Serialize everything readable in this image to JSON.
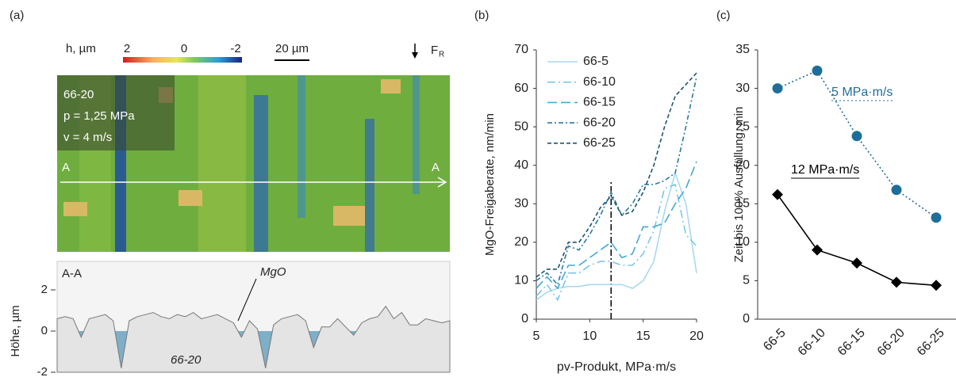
{
  "chart_data": [
    {
      "type": "area",
      "panel_label": "(a)",
      "colorbar_label": "h, µm",
      "colorbar_ticks": [
        "2",
        "0",
        "-2"
      ],
      "scale_bar": "20 µm",
      "force_label": "F",
      "force_subscript": "R",
      "image_texts": [
        "66-20",
        "p = 1,25 MPa",
        "v = 4 m/s"
      ],
      "section_marks": [
        "A",
        "A"
      ],
      "title": "A-A",
      "annotation": "MgO",
      "inner_label": "66-20",
      "ylabel": "Höhe, µm",
      "ylim": [
        -2,
        2
      ],
      "yticks": [
        -2,
        0,
        2
      ],
      "color": "#e4e4e4",
      "fill_below": "#7fafc8",
      "values": [
        0.6,
        0.7,
        0.6,
        -0.3,
        0.6,
        0.7,
        0.8,
        0.5,
        -1.8,
        0.5,
        0.7,
        0.8,
        0.9,
        0.7,
        0.6,
        0.8,
        0.7,
        0.9,
        0.6,
        0.7,
        0.8,
        0.6,
        0.4,
        -0.3,
        0.5,
        0.1,
        -1.8,
        0.3,
        0.6,
        0.7,
        0.8,
        0.5,
        -0.8,
        0.2,
        0.2,
        0.6,
        0.2,
        -0.2,
        0.4,
        0.6,
        0.7,
        1.2,
        0.6,
        0.9,
        0.3,
        0.3,
        0.6,
        0.5,
        0.4,
        0.5
      ]
    },
    {
      "type": "line",
      "panel_label": "(b)",
      "xlabel": "pv-Produkt, MPa·m/s",
      "ylabel": "MgO-Freigaberate, nm/min",
      "x": [
        5,
        6,
        7,
        8,
        9,
        10,
        11,
        12,
        13,
        14,
        15,
        16,
        17,
        18,
        19,
        20
      ],
      "xlim": [
        5,
        20
      ],
      "ylim": [
        0,
        70
      ],
      "xticks": [
        5,
        10,
        15,
        20
      ],
      "yticks": [
        0,
        10,
        20,
        30,
        40,
        50,
        60,
        70
      ],
      "marker_line": 12,
      "series": [
        {
          "name": "66-5",
          "color": "#a9d8ef",
          "dash": "",
          "values": [
            5,
            7,
            8,
            8.5,
            8.5,
            9,
            9,
            9,
            9,
            8,
            10,
            15,
            28,
            38,
            30,
            12
          ]
        },
        {
          "name": "66-10",
          "color": "#7cc6e6",
          "dash": "10 4 2 4",
          "values": [
            6,
            9,
            5,
            12,
            12,
            14,
            15,
            15,
            14,
            14,
            17,
            23,
            34,
            35,
            22,
            19
          ]
        },
        {
          "name": "66-15",
          "color": "#45a8d4",
          "dash": "12 5",
          "values": [
            8,
            11,
            8,
            14,
            14,
            16,
            18,
            20,
            16,
            17,
            24,
            24,
            25,
            30,
            34,
            41
          ]
        },
        {
          "name": "66-20",
          "color": "#2a7aa3",
          "dash": "6 3 2 3",
          "values": [
            10,
            12,
            9,
            19,
            18,
            22,
            27,
            33,
            27,
            30,
            35,
            35,
            36,
            38,
            50,
            63
          ]
        },
        {
          "name": "66-25",
          "color": "#1c5473",
          "dash": "5 3",
          "values": [
            11,
            13,
            13,
            20,
            20,
            24,
            29,
            32,
            27,
            28,
            33,
            40,
            50,
            58,
            61,
            64
          ]
        }
      ]
    },
    {
      "type": "line",
      "panel_label": "(c)",
      "ylabel": "Zeit bis 100% Ausfüllung, min",
      "categories": [
        "66-5",
        "66-10",
        "66-15",
        "66-20",
        "66-25"
      ],
      "ylim": [
        0,
        35
      ],
      "yticks": [
        0,
        5,
        10,
        15,
        20,
        25,
        30,
        35
      ],
      "series": [
        {
          "name": "5 MPa·m/s",
          "color": "#1f6e9a",
          "dash": "2 3",
          "marker": "circle",
          "values": [
            30,
            32.3,
            23.8,
            16.8,
            13.2
          ]
        },
        {
          "name": "12 MPa·m/s",
          "color": "#000000",
          "dash": "",
          "marker": "diamond",
          "values": [
            16.2,
            9,
            7.3,
            4.8,
            4.4
          ]
        }
      ]
    }
  ]
}
